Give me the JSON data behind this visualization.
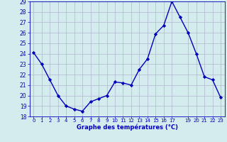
{
  "hours": [
    0,
    1,
    2,
    3,
    4,
    5,
    6,
    7,
    8,
    9,
    10,
    11,
    12,
    13,
    14,
    15,
    16,
    17,
    18,
    19,
    20,
    21,
    22,
    23
  ],
  "temperatures": [
    24.1,
    23.0,
    21.5,
    20.0,
    19.0,
    18.7,
    18.5,
    19.4,
    19.7,
    20.0,
    21.3,
    21.2,
    21.0,
    22.5,
    23.5,
    25.9,
    26.7,
    29.0,
    27.5,
    26.0,
    24.0,
    21.8,
    21.5,
    19.8
  ],
  "line_color": "#0000bb",
  "marker": "D",
  "marker_size": 2.2,
  "xlabel": "Graphe des températures (°C)",
  "ylim": [
    18,
    29
  ],
  "xlim_min": -0.5,
  "xlim_max": 23.5,
  "yticks": [
    18,
    19,
    20,
    21,
    22,
    23,
    24,
    25,
    26,
    27,
    28,
    29
  ],
  "xtick_positions": [
    0,
    1,
    2,
    3,
    4,
    5,
    6,
    7,
    8,
    9,
    10,
    11,
    12,
    13,
    14,
    15,
    16,
    17,
    19,
    20,
    21,
    22,
    23
  ],
  "xtick_labels": [
    "0",
    "1",
    "2",
    "3",
    "4",
    "5",
    "6",
    "7",
    "8",
    "9",
    "10",
    "11",
    "12",
    "13",
    "14",
    "15",
    "16",
    "17",
    "19",
    "20",
    "21",
    "22",
    "23"
  ],
  "bg_color": "#d5ecee",
  "grid_color": "#b0b8cc",
  "text_color": "#0000bb",
  "linewidth": 1.0,
  "xlabel_fontsize": 6.0,
  "ytick_fontsize": 5.5,
  "xtick_fontsize": 5.0
}
